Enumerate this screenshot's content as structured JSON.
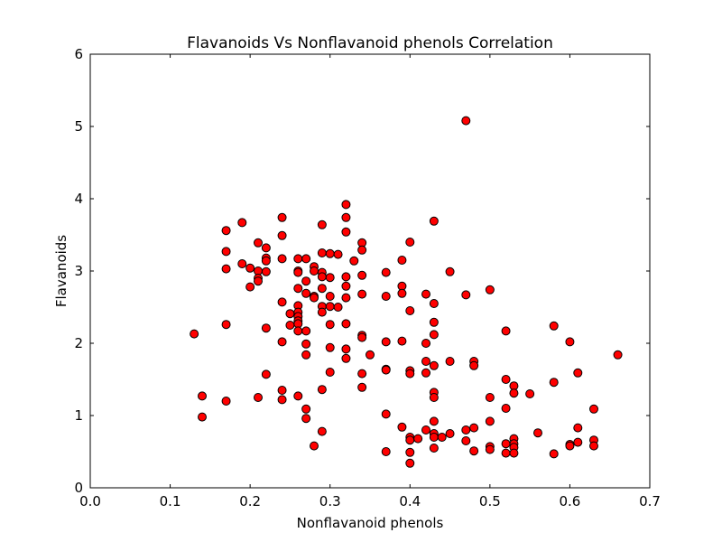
{
  "chart_data": {
    "type": "scatter",
    "title": "Flavanoids Vs Nonflavanoid phenols Correlation",
    "xlabel": "Nonflavanoid phenols",
    "ylabel": "Flavanoids",
    "xlim": [
      0.0,
      0.7
    ],
    "ylim": [
      0,
      6
    ],
    "xticks": [
      "0.0",
      "0.1",
      "0.2",
      "0.3",
      "0.4",
      "0.5",
      "0.6",
      "0.7"
    ],
    "yticks": [
      "0",
      "1",
      "2",
      "3",
      "4",
      "5",
      "6"
    ],
    "grid": false,
    "marker_color": "#ff0000",
    "marker_edge_color": "#000000",
    "points": [
      [
        0.13,
        2.13
      ],
      [
        0.14,
        1.27
      ],
      [
        0.14,
        0.98
      ],
      [
        0.17,
        3.56
      ],
      [
        0.17,
        3.27
      ],
      [
        0.17,
        3.03
      ],
      [
        0.17,
        2.26
      ],
      [
        0.17,
        1.2
      ],
      [
        0.19,
        3.67
      ],
      [
        0.19,
        3.1
      ],
      [
        0.2,
        3.04
      ],
      [
        0.2,
        2.78
      ],
      [
        0.21,
        3.39
      ],
      [
        0.21,
        3.0
      ],
      [
        0.21,
        2.9
      ],
      [
        0.21,
        2.86
      ],
      [
        0.21,
        1.25
      ],
      [
        0.22,
        3.32
      ],
      [
        0.22,
        3.18
      ],
      [
        0.22,
        3.14
      ],
      [
        0.22,
        2.99
      ],
      [
        0.22,
        2.21
      ],
      [
        0.22,
        1.57
      ],
      [
        0.24,
        3.74
      ],
      [
        0.24,
        3.49
      ],
      [
        0.24,
        3.17
      ],
      [
        0.24,
        2.57
      ],
      [
        0.24,
        2.02
      ],
      [
        0.24,
        1.35
      ],
      [
        0.24,
        1.22
      ],
      [
        0.25,
        2.41
      ],
      [
        0.25,
        2.25
      ],
      [
        0.26,
        3.17
      ],
      [
        0.26,
        3.0
      ],
      [
        0.26,
        2.98
      ],
      [
        0.26,
        2.76
      ],
      [
        0.26,
        2.52
      ],
      [
        0.26,
        2.43
      ],
      [
        0.26,
        2.37
      ],
      [
        0.26,
        2.31
      ],
      [
        0.26,
        2.27
      ],
      [
        0.26,
        2.17
      ],
      [
        0.26,
        1.27
      ],
      [
        0.27,
        3.17
      ],
      [
        0.27,
        2.86
      ],
      [
        0.27,
        2.69
      ],
      [
        0.27,
        2.17
      ],
      [
        0.27,
        1.99
      ],
      [
        0.27,
        1.84
      ],
      [
        0.27,
        1.09
      ],
      [
        0.27,
        0.96
      ],
      [
        0.28,
        3.06
      ],
      [
        0.28,
        3.0
      ],
      [
        0.28,
        2.65
      ],
      [
        0.28,
        2.63
      ],
      [
        0.28,
        0.58
      ],
      [
        0.29,
        3.64
      ],
      [
        0.29,
        3.25
      ],
      [
        0.29,
        2.98
      ],
      [
        0.29,
        2.92
      ],
      [
        0.29,
        2.76
      ],
      [
        0.29,
        2.51
      ],
      [
        0.29,
        2.43
      ],
      [
        0.29,
        1.36
      ],
      [
        0.29,
        0.78
      ],
      [
        0.3,
        3.24
      ],
      [
        0.3,
        2.91
      ],
      [
        0.3,
        2.65
      ],
      [
        0.3,
        2.51
      ],
      [
        0.3,
        2.26
      ],
      [
        0.3,
        1.94
      ],
      [
        0.3,
        1.6
      ],
      [
        0.31,
        3.23
      ],
      [
        0.31,
        2.5
      ],
      [
        0.32,
        3.92
      ],
      [
        0.32,
        3.74
      ],
      [
        0.32,
        3.54
      ],
      [
        0.32,
        2.92
      ],
      [
        0.32,
        2.79
      ],
      [
        0.32,
        2.63
      ],
      [
        0.32,
        2.27
      ],
      [
        0.32,
        1.92
      ],
      [
        0.32,
        1.79
      ],
      [
        0.33,
        3.14
      ],
      [
        0.34,
        3.39
      ],
      [
        0.34,
        3.29
      ],
      [
        0.34,
        2.94
      ],
      [
        0.34,
        2.68
      ],
      [
        0.34,
        2.11
      ],
      [
        0.34,
        2.08
      ],
      [
        0.34,
        1.58
      ],
      [
        0.34,
        1.39
      ],
      [
        0.35,
        1.84
      ],
      [
        0.37,
        2.98
      ],
      [
        0.37,
        2.65
      ],
      [
        0.37,
        2.02
      ],
      [
        0.37,
        1.64
      ],
      [
        0.37,
        1.63
      ],
      [
        0.37,
        1.02
      ],
      [
        0.37,
        0.5
      ],
      [
        0.39,
        3.15
      ],
      [
        0.39,
        2.79
      ],
      [
        0.39,
        2.69
      ],
      [
        0.39,
        2.03
      ],
      [
        0.39,
        0.84
      ],
      [
        0.4,
        3.4
      ],
      [
        0.4,
        2.45
      ],
      [
        0.4,
        1.62
      ],
      [
        0.4,
        1.58
      ],
      [
        0.4,
        0.7
      ],
      [
        0.4,
        0.66
      ],
      [
        0.4,
        0.49
      ],
      [
        0.4,
        0.34
      ],
      [
        0.41,
        0.68
      ],
      [
        0.42,
        2.68
      ],
      [
        0.42,
        2.0
      ],
      [
        0.42,
        1.75
      ],
      [
        0.42,
        1.59
      ],
      [
        0.42,
        0.8
      ],
      [
        0.43,
        3.69
      ],
      [
        0.43,
        2.55
      ],
      [
        0.43,
        2.29
      ],
      [
        0.43,
        2.12
      ],
      [
        0.43,
        1.69
      ],
      [
        0.43,
        1.32
      ],
      [
        0.43,
        1.25
      ],
      [
        0.43,
        0.92
      ],
      [
        0.43,
        0.75
      ],
      [
        0.43,
        0.7
      ],
      [
        0.43,
        0.55
      ],
      [
        0.44,
        0.7
      ],
      [
        0.45,
        2.99
      ],
      [
        0.45,
        1.75
      ],
      [
        0.45,
        0.75
      ],
      [
        0.47,
        5.08
      ],
      [
        0.47,
        2.67
      ],
      [
        0.47,
        0.8
      ],
      [
        0.47,
        0.65
      ],
      [
        0.48,
        1.75
      ],
      [
        0.48,
        1.69
      ],
      [
        0.48,
        0.83
      ],
      [
        0.48,
        0.51
      ],
      [
        0.5,
        2.74
      ],
      [
        0.5,
        1.25
      ],
      [
        0.5,
        0.92
      ],
      [
        0.5,
        0.57
      ],
      [
        0.5,
        0.53
      ],
      [
        0.52,
        2.17
      ],
      [
        0.52,
        1.5
      ],
      [
        0.52,
        1.1
      ],
      [
        0.52,
        0.61
      ],
      [
        0.52,
        0.48
      ],
      [
        0.53,
        1.41
      ],
      [
        0.53,
        1.31
      ],
      [
        0.53,
        0.68
      ],
      [
        0.53,
        0.61
      ],
      [
        0.53,
        0.56
      ],
      [
        0.53,
        0.48
      ],
      [
        0.55,
        1.3
      ],
      [
        0.56,
        0.76
      ],
      [
        0.58,
        2.24
      ],
      [
        0.58,
        1.46
      ],
      [
        0.58,
        0.47
      ],
      [
        0.6,
        2.02
      ],
      [
        0.6,
        0.6
      ],
      [
        0.6,
        0.58
      ],
      [
        0.61,
        1.59
      ],
      [
        0.61,
        0.83
      ],
      [
        0.61,
        0.63
      ],
      [
        0.63,
        1.09
      ],
      [
        0.63,
        0.66
      ],
      [
        0.63,
        0.58
      ],
      [
        0.66,
        1.84
      ]
    ]
  }
}
